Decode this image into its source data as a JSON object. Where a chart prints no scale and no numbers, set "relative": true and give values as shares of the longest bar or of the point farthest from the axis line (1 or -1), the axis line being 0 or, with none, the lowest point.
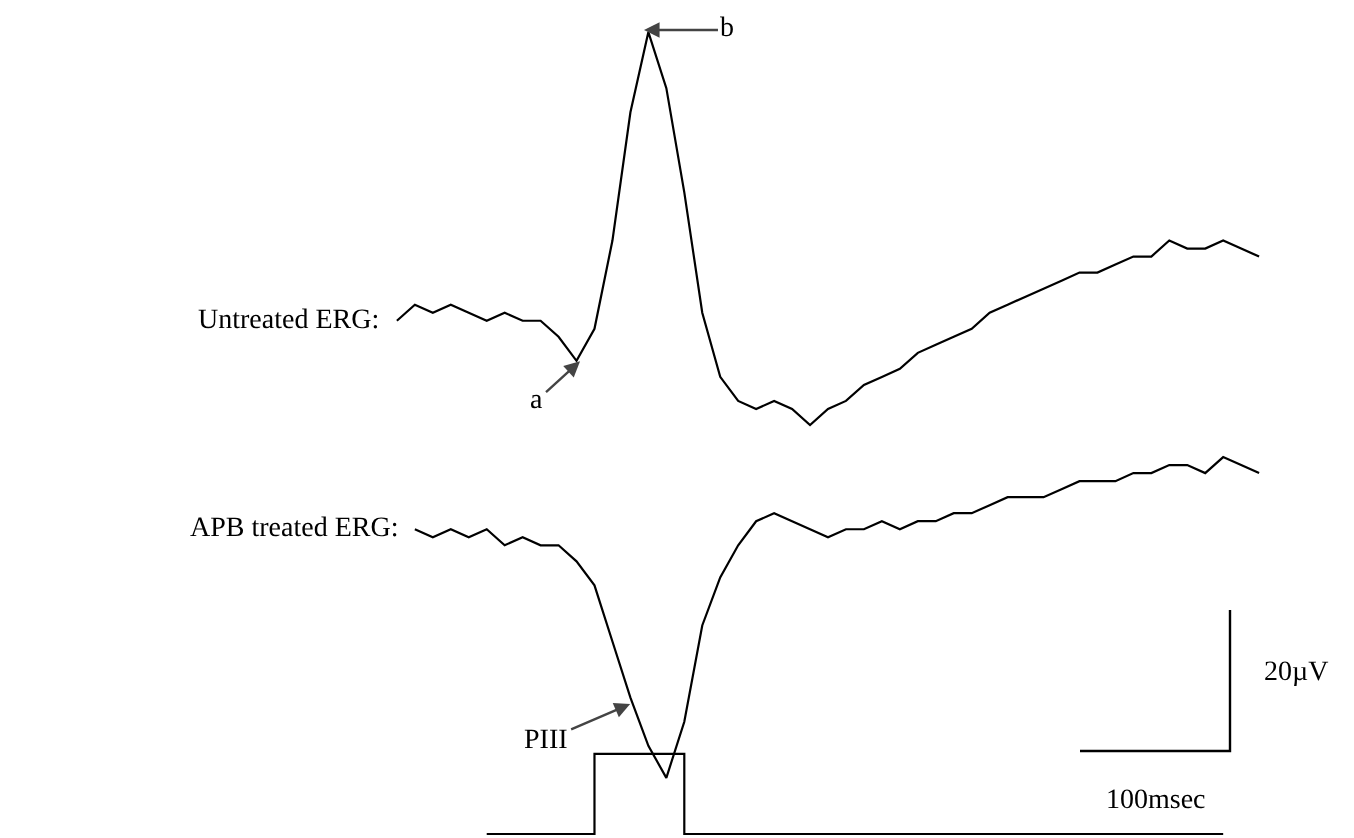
{
  "chart_data": {
    "type": "line",
    "relative": true,
    "tick_labels": false,
    "legend": false,
    "marker": "none",
    "line_style": "solid",
    "categories": [
      null,
      null,
      null,
      null,
      null,
      null,
      null,
      null,
      null,
      null,
      null,
      null,
      null,
      null,
      null,
      null,
      null,
      null,
      null,
      null,
      null,
      null,
      null,
      null,
      null,
      null,
      null,
      null,
      null,
      null,
      null,
      null,
      null,
      null,
      null,
      null,
      null,
      null,
      null,
      null,
      null,
      null,
      null,
      null,
      null,
      null,
      null,
      null,
      null
    ],
    "series": [
      {
        "name": "Untreated ERG:",
        "color": "#000000",
        "values": [
          0.64,
          0.66,
          0.65,
          0.66,
          0.65,
          0.64,
          0.65,
          0.64,
          0.64,
          0.62,
          0.59,
          0.63,
          0.74,
          0.9,
          1.0,
          0.93,
          0.8,
          0.65,
          0.57,
          0.54,
          0.53,
          0.54,
          0.53,
          0.51,
          0.53,
          0.54,
          0.56,
          0.57,
          0.58,
          0.6,
          0.61,
          0.62,
          0.63,
          0.65,
          0.66,
          0.67,
          0.68,
          0.69,
          0.7,
          0.7,
          0.71,
          0.72,
          0.72,
          0.74,
          0.73,
          0.73,
          0.74,
          0.73,
          0.72
        ]
      },
      {
        "name": "APB treated ERG:",
        "color": "#000000",
        "values": [
          null,
          0.38,
          0.37,
          0.38,
          0.37,
          0.38,
          0.36,
          0.37,
          0.36,
          0.36,
          0.34,
          0.31,
          0.24,
          0.17,
          0.11,
          0.07,
          0.14,
          0.26,
          0.32,
          0.36,
          0.39,
          0.4,
          0.39,
          0.38,
          0.37,
          0.38,
          0.38,
          0.39,
          0.38,
          0.39,
          0.39,
          0.4,
          0.4,
          0.41,
          0.42,
          0.42,
          0.42,
          0.43,
          0.44,
          0.44,
          0.44,
          0.45,
          0.45,
          0.46,
          0.46,
          0.45,
          0.47,
          0.46,
          0.45
        ]
      },
      {
        "type": "step",
        "color": "#000000",
        "values": [
          null,
          null,
          null,
          null,
          null,
          0,
          0,
          0,
          0,
          0,
          0,
          0.1,
          0.1,
          0.1,
          0.1,
          0.1,
          0,
          0,
          0,
          0,
          0,
          0,
          0,
          0,
          0,
          0,
          0,
          0,
          0,
          0,
          0,
          0,
          0,
          0,
          0,
          0,
          0,
          0,
          0,
          0,
          0,
          0,
          0,
          0,
          0,
          0,
          0,
          null,
          null
        ]
      }
    ],
    "annotations": [
      "a",
      "b",
      "PIII",
      "20µV",
      "100msec"
    ]
  }
}
